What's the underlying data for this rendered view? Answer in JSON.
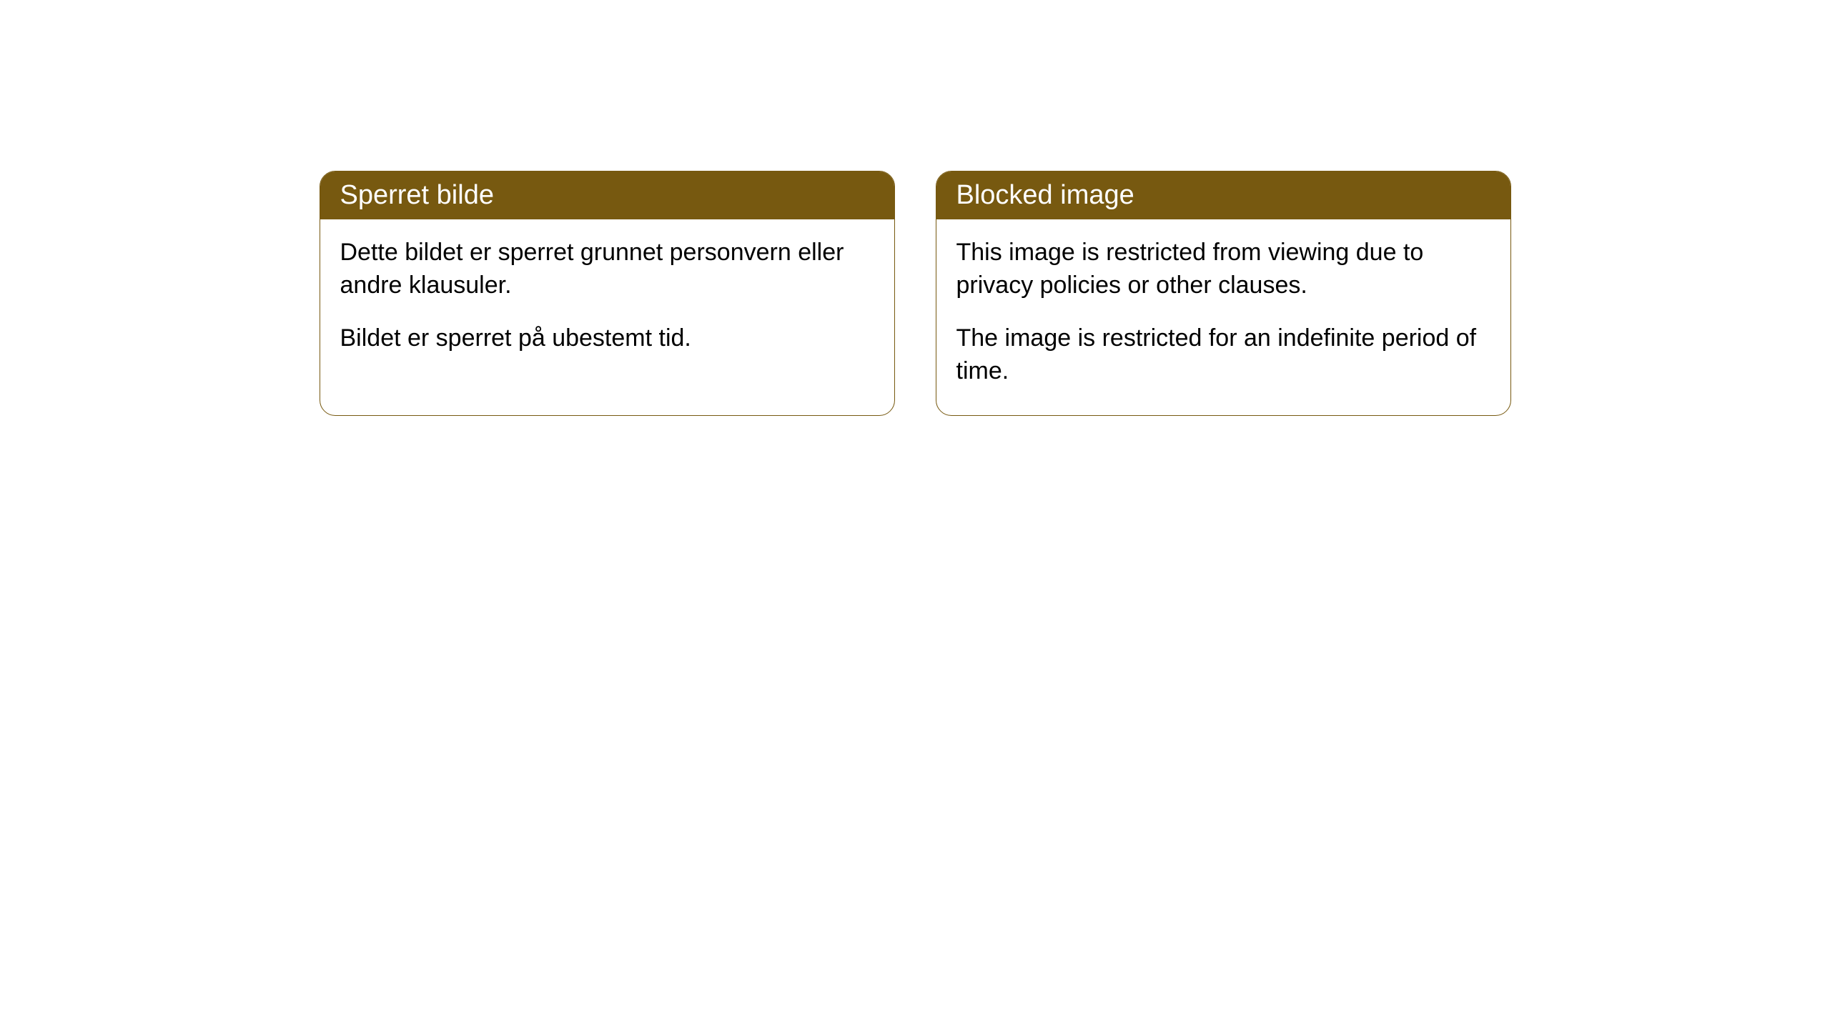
{
  "cards": [
    {
      "title": "Sperret bilde",
      "paragraph1": "Dette bildet er sperret grunnet personvern eller andre klausuler.",
      "paragraph2": "Bildet er sperret på ubestemt tid."
    },
    {
      "title": "Blocked image",
      "paragraph1": "This image is restricted from viewing due to privacy policies or other clauses.",
      "paragraph2": "The image is restricted for an indefinite period of time."
    }
  ],
  "style": {
    "header_bg_color": "#775910",
    "header_text_color": "#ffffff",
    "border_color": "#775910",
    "body_bg_color": "#ffffff",
    "body_text_color": "#000000",
    "border_radius": 22,
    "header_fontsize": 38,
    "body_fontsize": 34
  }
}
